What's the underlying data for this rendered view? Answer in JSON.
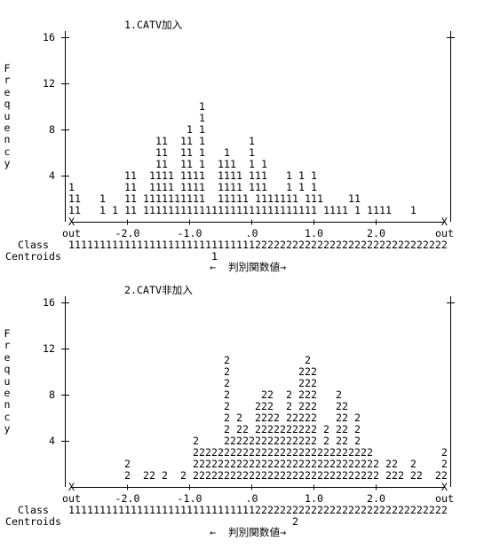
{
  "panels": [
    {
      "title": "1.CATV加入",
      "y_label": "Frequency",
      "y_ticks": [
        16,
        12,
        8,
        4
      ],
      "rows": [
        "11   1 1 11 1111111111111111111111111111 1111 1 1111   1",
        "11   1   11 1111111111  11111 1111111 111    11",
        "1        11  1111 1111  1111 111   1 1 1",
        "         11  1111 1111  1111 111   1 1 1",
        "              11  11 1  111  1 1",
        "              11  11 1   1   1",
        "              11  11 1       1",
        "                   1 1",
        "                     1",
        "                     1"
      ],
      "x_axis": "X        +         +         +         +         +          X",
      "x_labels": [
        "out",
        "-2.0",
        "-1.0",
        ".0",
        "1.0",
        "2.0",
        "out"
      ],
      "class_label": "Class",
      "class_line": "1111111111111111111111111111112222222222222222222222222222222",
      "centroids_label": "Centroids",
      "centroid": "1",
      "footer": "←  判別関数値→"
    },
    {
      "title": "2.CATV非加入",
      "y_label": "Frequency",
      "y_ticks": [
        16,
        12,
        8,
        4
      ],
      "rows": [
        "         2  22 2  2 222222222222222222222222222222 222 22  22",
        "         2          222222222222222222222222222222 22  2    2",
        "                    22222222222222222222222222222           2",
        "                    2    222222222222222 2 22 2",
        "                         2 22 2222222222 2 22 2",
        "                         2 2  2222 22222   22 2",
        "                         2    222  2 222   22",
        "                         2     22  2 222   2",
        "                         2           222",
        "                         2           222",
        "                         2            2"
      ],
      "x_axis": "X        +         +         +         +         +          X",
      "x_labels": [
        "out",
        "-2.0",
        "-1.0",
        ".0",
        "1.0",
        "2.0",
        "out"
      ],
      "class_label": "Class",
      "class_line": "1111111111111111111111111111112222222222222222222222222222222",
      "centroids_label": "Centroids",
      "centroid": "2",
      "footer": "←  判別関数値→"
    }
  ]
}
